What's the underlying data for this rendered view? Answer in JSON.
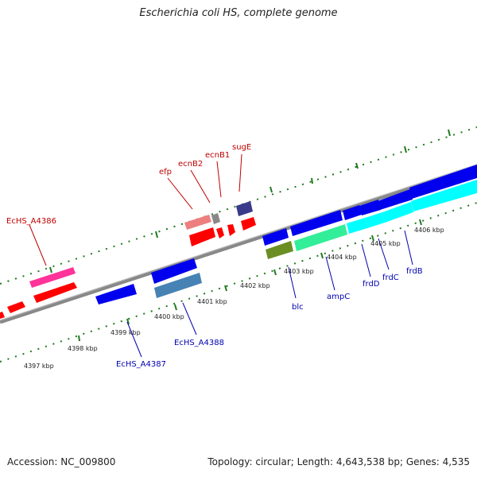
{
  "title": "Escherichia coli HS, complete genome",
  "footer": {
    "accession": "Accession: NC_009800",
    "summary": "Topology: circular; Length: 4,643,538 bp; Genes: 4,535"
  },
  "ticks": [
    "4397 kbp",
    "4398 kbp",
    "4399 kbp",
    "4400 kbp",
    "4401 kbp",
    "4402 kbp",
    "4403 kbp",
    "4404 kbp",
    "4405 kbp",
    "4406 kbp"
  ],
  "gene_labels": {
    "EcHS_A4386": "EcHS_A4386",
    "efp": "efp",
    "ecnB2": "ecnB2",
    "ecnB1": "ecnB1",
    "sugE": "sugE",
    "EcHS_A4387": "EcHS_A4387",
    "EcHS_A4388": "EcHS_A4388",
    "blc": "blc",
    "ampC": "ampC",
    "frdD": "frdD",
    "frdC": "frdC",
    "frdB": "frdB"
  },
  "colors": {
    "backbone": "#7f7f7f",
    "tick_dots": "#1f7a1f",
    "forward_red": "#ff0000",
    "blue": "#0000ee",
    "magenta": "#ff3399",
    "pink": "#ee7f7f",
    "purple": "#3a3a8a",
    "steel": "#4682b4",
    "olive": "#6b8e23",
    "springgreen": "#33ee99",
    "cyan": "#00ffff"
  }
}
